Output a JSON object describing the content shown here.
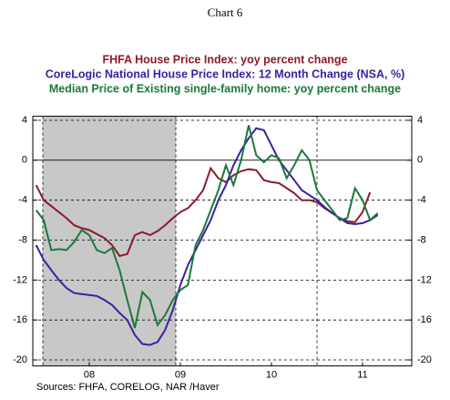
{
  "chart_data": {
    "type": "line",
    "title": "Chart 6",
    "source": "Sources:  FHFA, CORELOG, NAR /Haver",
    "x": [
      2007.917,
      2008.0,
      2008.083,
      2008.167,
      2008.25,
      2008.333,
      2008.417,
      2008.5,
      2008.583,
      2008.667,
      2008.75,
      2008.833,
      2008.917,
      2009.0,
      2009.083,
      2009.167,
      2009.25,
      2009.333,
      2009.417,
      2009.5,
      2009.583,
      2009.667,
      2009.75,
      2009.833,
      2009.917,
      2010.0,
      2010.083,
      2010.167,
      2010.25,
      2010.333,
      2010.417,
      2010.5,
      2010.583,
      2010.667,
      2010.75,
      2010.833,
      2010.917,
      2011.0,
      2011.083,
      2011.167,
      2011.25,
      2011.333,
      2011.417,
      2011.5,
      2011.583,
      2011.667
    ],
    "series": [
      {
        "name": "FHFA House Price Index: yoy percent change",
        "color": "#8b1a2f",
        "values": [
          -2.5,
          -4,
          -4.6,
          -5.2,
          -5.8,
          -6.5,
          -6.8,
          -7,
          -7.4,
          -7.8,
          -8.5,
          -9.6,
          -9.4,
          -7.5,
          -7.2,
          -7.5,
          -7.1,
          -6.5,
          -5.8,
          -5.2,
          -4.8,
          -4,
          -3,
          -0.8,
          -1.8,
          -2.2,
          -1.5,
          -1.1,
          -0.9,
          -1,
          -2,
          -2.2,
          -2.3,
          -2.8,
          -3.3,
          -4,
          -4,
          -4.2,
          -4.8,
          -5.3,
          -5.8,
          -6.1,
          -6.2,
          -5.2,
          -3.2,
          null
        ]
      },
      {
        "name": "CoreLogic National House Price Index: 12 Month Change (NSA, %)",
        "color": "#3a22a0",
        "values": [
          -8.5,
          -10,
          -11,
          -12,
          -12.8,
          -13.3,
          -13.4,
          -13.5,
          -13.6,
          -14,
          -14.5,
          -15.3,
          -16,
          -17.5,
          -18.4,
          -18.5,
          -18.2,
          -17,
          -15,
          -12.5,
          -10.5,
          -9,
          -7.5,
          -6,
          -4,
          -2.5,
          -0.5,
          1,
          2.2,
          3.2,
          3,
          1.5,
          0,
          -1,
          -2,
          -3,
          -3.5,
          -4,
          -4.7,
          -5.3,
          -5.8,
          -6.3,
          -6.4,
          -6.3,
          -6,
          -5.5
        ]
      },
      {
        "name": "Median Price of Existing single-family home: yoy percent change",
        "color": "#1a7a3a",
        "values": [
          -5,
          -6,
          -9,
          -8.9,
          -9,
          -8.2,
          -7,
          -7.5,
          -9,
          -9.3,
          -8.8,
          -11,
          -14,
          -16.8,
          -13.2,
          -14,
          -16.5,
          -15.5,
          -14,
          -13,
          -12.5,
          -8.5,
          -7,
          -5,
          -3,
          -0.5,
          -2.5,
          0,
          3.5,
          0.5,
          -0.2,
          0.5,
          0.2,
          -1.8,
          -0.5,
          1,
          0,
          -3,
          -4,
          -5,
          -6,
          -5.8,
          -2.8,
          -4,
          -6,
          -5.3
        ]
      }
    ],
    "xlim": [
      2007.88,
      2012.04
    ],
    "xticks": [
      {
        "value": 2008.5,
        "label": "08"
      },
      {
        "value": 2009.5,
        "label": "09"
      },
      {
        "value": 2010.5,
        "label": "10"
      },
      {
        "value": 2011.5,
        "label": "11"
      }
    ],
    "ylim": [
      -20.6,
      4.4
    ],
    "yticks": [
      4,
      0,
      -4,
      -8,
      -12,
      -16,
      -20
    ],
    "shade": [
      2007.99,
      2009.45
    ],
    "vlines": [
      2007.99,
      2009.45,
      2011.0
    ],
    "grid": true
  }
}
